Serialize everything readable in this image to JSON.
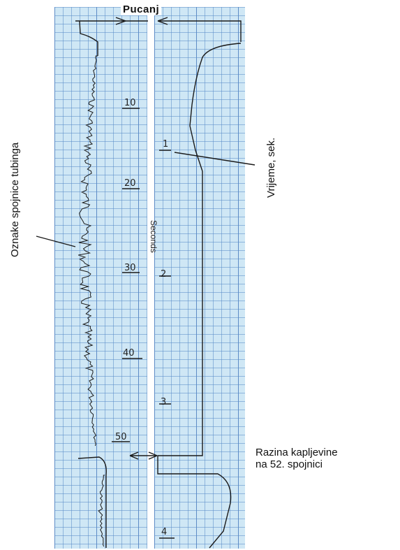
{
  "header": {
    "title": "Pucanj"
  },
  "labels": {
    "collar_marks": "Oznake spojnice tubinga",
    "time": "Vrijeme, sek.",
    "liquid_level_line1": "Razina kapljevine",
    "liquid_level_line2": "na 52. spojnici"
  },
  "left_scale": [
    "10",
    "20",
    "30",
    "40",
    "50"
  ],
  "right_scale": [
    "1",
    "2",
    "3",
    "4"
  ],
  "seconds_stamp": "Seconds",
  "colors": {
    "grid_background": "#cfe7f5",
    "trace": "#1a1a1a"
  }
}
